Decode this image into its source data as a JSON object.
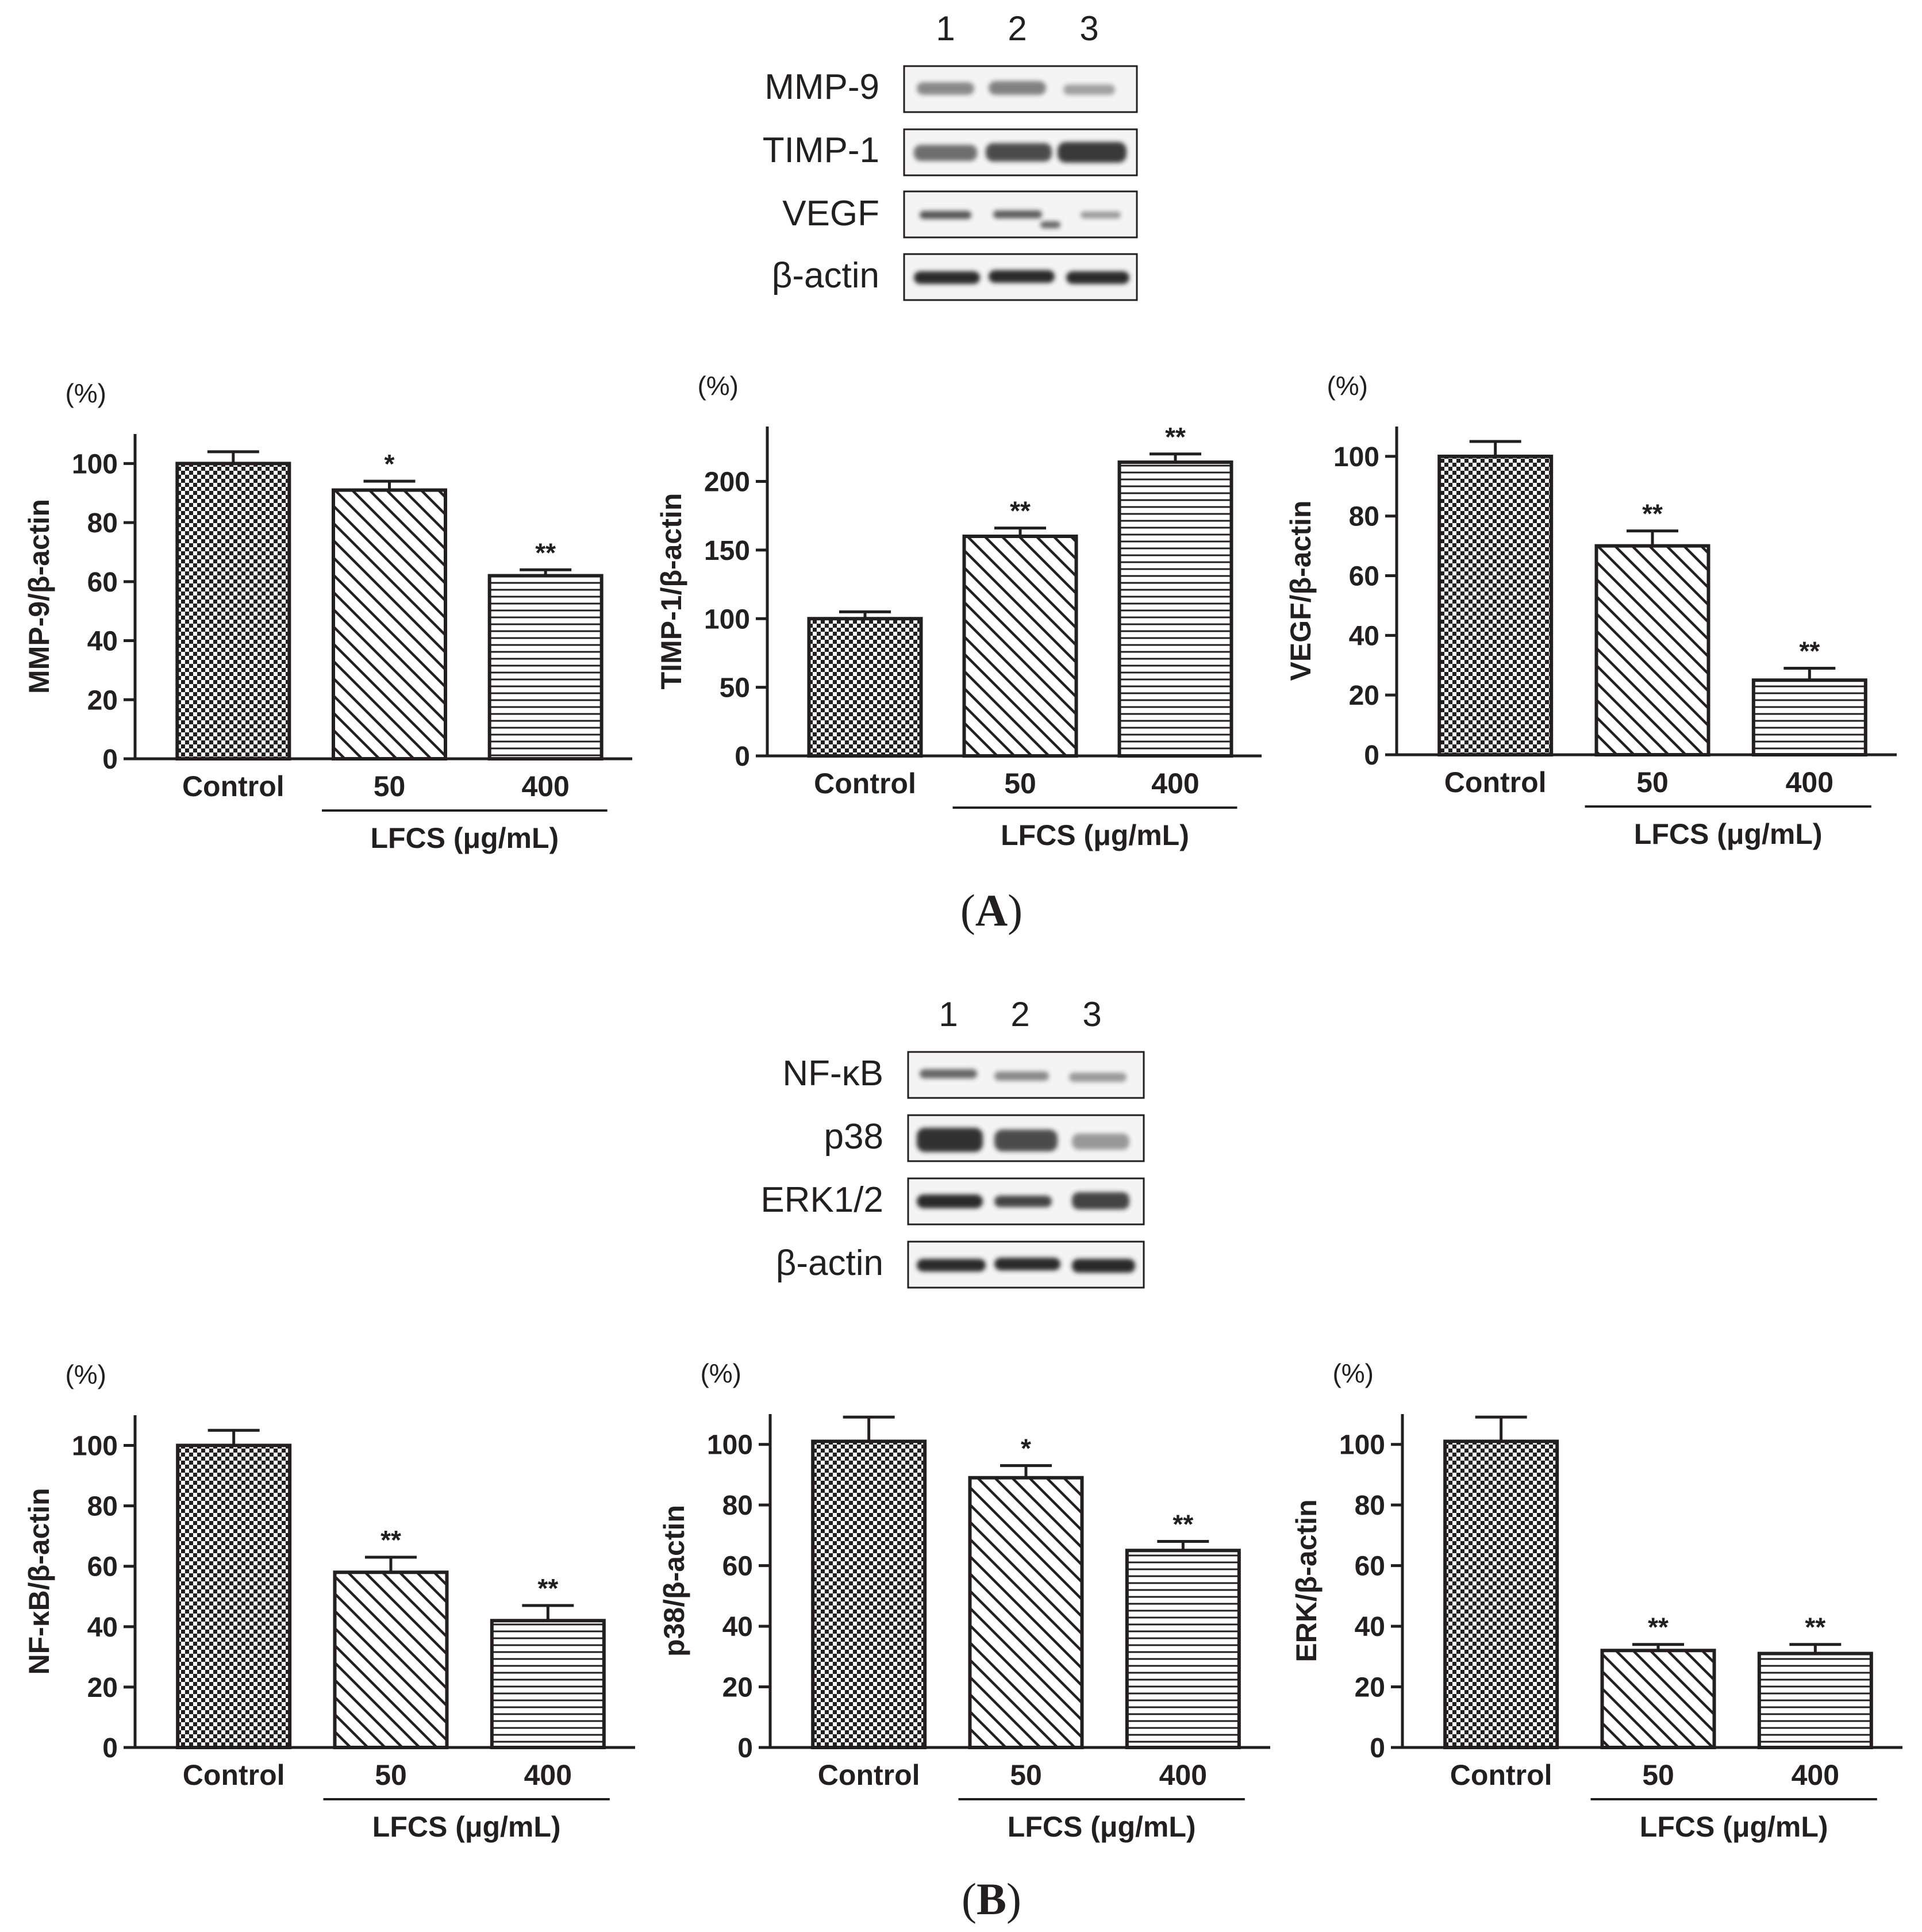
{
  "colors": {
    "ink": "#231f20",
    "background": "#ffffff",
    "blot_band": "#2a2a2a"
  },
  "panels": [
    {
      "label": "A",
      "blot": {
        "lanes": [
          "1",
          "2",
          "3"
        ],
        "rows": [
          {
            "name": "MMP-9",
            "band_intensity": [
              0.45,
              0.5,
              0.3
            ]
          },
          {
            "name": "TIMP-1",
            "band_intensity": [
              0.6,
              0.8,
              0.9
            ]
          },
          {
            "name": "VEGF",
            "band_intensity": [
              0.75,
              0.7,
              0.35
            ]
          },
          {
            "name": "β-actin",
            "band_intensity": [
              1.0,
              1.0,
              1.0
            ]
          }
        ]
      }
    },
    {
      "label": "B",
      "blot": {
        "lanes": [
          "1",
          "2",
          "3"
        ],
        "rows": [
          {
            "name": "NF-κB",
            "band_intensity": [
              0.65,
              0.45,
              0.35
            ]
          },
          {
            "name": "p38",
            "band_intensity": [
              0.95,
              0.8,
              0.35
            ]
          },
          {
            "name": "ERK1/2",
            "band_intensity": [
              1.0,
              0.85,
              0.85
            ]
          },
          {
            "name": "β-actin",
            "band_intensity": [
              1.0,
              1.0,
              1.0
            ]
          }
        ]
      }
    }
  ],
  "chart_data": [
    {
      "type": "bar",
      "panel": "A",
      "unit": "(%)",
      "ylabel": "MMP-9/β-actin",
      "categories": [
        "Control",
        "50",
        "400"
      ],
      "values": [
        100,
        91,
        62
      ],
      "errors": [
        4,
        3,
        2
      ],
      "significance": [
        "",
        "*",
        "**"
      ],
      "group_label": "LFCS (μg/mL)",
      "ylim": [
        0,
        110
      ],
      "yticks": [
        0,
        20,
        40,
        60,
        80,
        100
      ],
      "patterns": [
        "checker",
        "diagonal",
        "horizontal"
      ]
    },
    {
      "type": "bar",
      "panel": "A",
      "unit": "(%)",
      "ylabel": "TIMP-1/β-actin",
      "categories": [
        "Control",
        "50",
        "400"
      ],
      "values": [
        100,
        160,
        214
      ],
      "errors": [
        5,
        6,
        6
      ],
      "significance": [
        "",
        "**",
        "**"
      ],
      "group_label": "LFCS (μg/mL)",
      "ylim": [
        0,
        240
      ],
      "yticks": [
        0,
        50,
        100,
        150,
        200
      ],
      "patterns": [
        "checker",
        "diagonal",
        "horizontal"
      ]
    },
    {
      "type": "bar",
      "panel": "A",
      "unit": "(%)",
      "ylabel": "VEGF/β-actin",
      "categories": [
        "Control",
        "50",
        "400"
      ],
      "values": [
        100,
        70,
        25
      ],
      "errors": [
        5,
        5,
        4
      ],
      "significance": [
        "",
        "**",
        "**"
      ],
      "group_label": "LFCS (μg/mL)",
      "ylim": [
        0,
        110
      ],
      "yticks": [
        0,
        20,
        40,
        60,
        80,
        100
      ],
      "patterns": [
        "checker",
        "diagonal",
        "horizontal"
      ]
    },
    {
      "type": "bar",
      "panel": "B",
      "unit": "(%)",
      "ylabel": "NF-κB/β-actin",
      "categories": [
        "Control",
        "50",
        "400"
      ],
      "values": [
        100,
        58,
        42
      ],
      "errors": [
        5,
        5,
        5
      ],
      "significance": [
        "",
        "**",
        "**"
      ],
      "group_label": "LFCS (μg/mL)",
      "ylim": [
        0,
        110
      ],
      "yticks": [
        0,
        20,
        40,
        60,
        80,
        100
      ],
      "patterns": [
        "checker",
        "diagonal",
        "horizontal"
      ]
    },
    {
      "type": "bar",
      "panel": "B",
      "unit": "(%)",
      "ylabel": "p38/β-actin",
      "categories": [
        "Control",
        "50",
        "400"
      ],
      "values": [
        101,
        89,
        65
      ],
      "errors": [
        8,
        4,
        3
      ],
      "significance": [
        "",
        "*",
        "**"
      ],
      "group_label": "LFCS (μg/mL)",
      "ylim": [
        0,
        110
      ],
      "yticks": [
        0,
        20,
        40,
        60,
        80,
        100
      ],
      "patterns": [
        "checker",
        "diagonal",
        "horizontal"
      ]
    },
    {
      "type": "bar",
      "panel": "B",
      "unit": "(%)",
      "ylabel": "ERK/β-actin",
      "categories": [
        "Control",
        "50",
        "400"
      ],
      "values": [
        101,
        32,
        31
      ],
      "errors": [
        8,
        2,
        3
      ],
      "significance": [
        "",
        "**",
        "**"
      ],
      "group_label": "LFCS (μg/mL)",
      "ylim": [
        0,
        110
      ],
      "yticks": [
        0,
        20,
        40,
        60,
        80,
        100
      ],
      "patterns": [
        "checker",
        "diagonal",
        "horizontal"
      ]
    }
  ]
}
